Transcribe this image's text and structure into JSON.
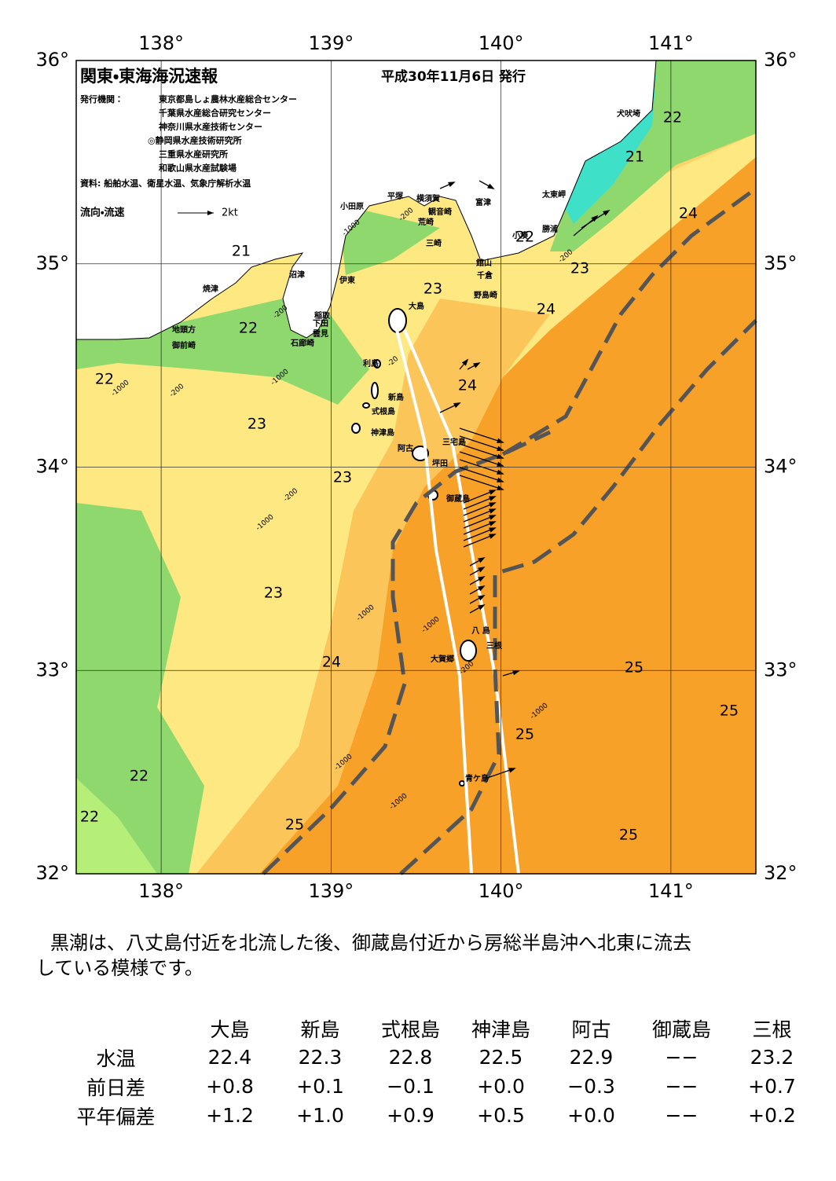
{
  "header": {
    "title": "関東・東海海況速報",
    "date": "平成30年11月6日 発行",
    "issuer_label": "発行機関：",
    "issuers": [
      "東京都島しょ農林水産総合センター",
      "千葉県水産総合研究センター",
      "神奈川県水産技術センター",
      "◎静岡県水産技術研究所",
      "三重県水産研究所",
      "和歌山県水産試験場"
    ],
    "sources": "資料: 船舶水温、衛星水温、気象庁解析水温",
    "legend_label": "流向・流速",
    "legend_scale": "2kt"
  },
  "map": {
    "lon_lim": [
      137.5,
      141.5
    ],
    "lat_lim": [
      32,
      36
    ],
    "lon_ticks": [
      {
        "value": 138,
        "label": "138°"
      },
      {
        "value": 139,
        "label": "139°"
      },
      {
        "value": 140,
        "label": "140°"
      },
      {
        "value": 141,
        "label": "141°"
      }
    ],
    "lat_ticks": [
      {
        "value": 36,
        "label": "36°"
      },
      {
        "value": 35,
        "label": "35°"
      },
      {
        "value": 34,
        "label": "34°"
      },
      {
        "value": 33,
        "label": "33°"
      },
      {
        "value": 32,
        "label": "32°"
      }
    ],
    "isotherm_labels": [
      22,
      21,
      24,
      23,
      21,
      23,
      24,
      22,
      24,
      22,
      23,
      23,
      23,
      24,
      25,
      25,
      25,
      22,
      22,
      25,
      25,
      22
    ],
    "depth_labels": [
      -200,
      -200,
      -1000,
      -200,
      -1000,
      -200,
      -20,
      -1000,
      -200,
      -1000,
      -1000,
      -1000,
      -200,
      -1000,
      -1000,
      -1000
    ],
    "places": [
      "犬吠埼",
      "太東岬",
      "勝浦",
      "富津",
      "横須賀",
      "観音崎",
      "平塚",
      "荒崎",
      "三崎",
      "小田原",
      "館山",
      "千倉",
      "野島崎",
      "小湊",
      "沼津",
      "伊東",
      "焼津",
      "稲取",
      "下田",
      "雲見",
      "石廊崎",
      "地頭方",
      "御前崎",
      "大島",
      "利島",
      "新島",
      "式根島",
      "神津島",
      "三宅島",
      "阿古",
      "坪田",
      "御蔵島",
      "八 島",
      "三根",
      "大賀郷",
      "青ケ島"
    ]
  },
  "summary": [
    "黒潮は、八丈島付近を北流した後、御蔵島付近から房総半島沖へ北東に流去",
    "している模様です。"
  ],
  "table": {
    "columns": [
      "大島",
      "新島",
      "式根島",
      "神津島",
      "阿古",
      "御蔵島",
      "三根"
    ],
    "rows": [
      {
        "label": "水温",
        "values": [
          "22.4",
          "22.3",
          "22.8",
          "22.5",
          "22.9",
          "−−",
          "23.2"
        ]
      },
      {
        "label": "前日差",
        "values": [
          "+0.8",
          "+0.1",
          "−0.1",
          "+0.0",
          "−0.3",
          "−−",
          "+0.7"
        ]
      },
      {
        "label": "平年偏差",
        "values": [
          "+1.2",
          "+1.0",
          "+0.9",
          "+0.5",
          "+0.0",
          "−−",
          "+0.2"
        ]
      }
    ]
  }
}
